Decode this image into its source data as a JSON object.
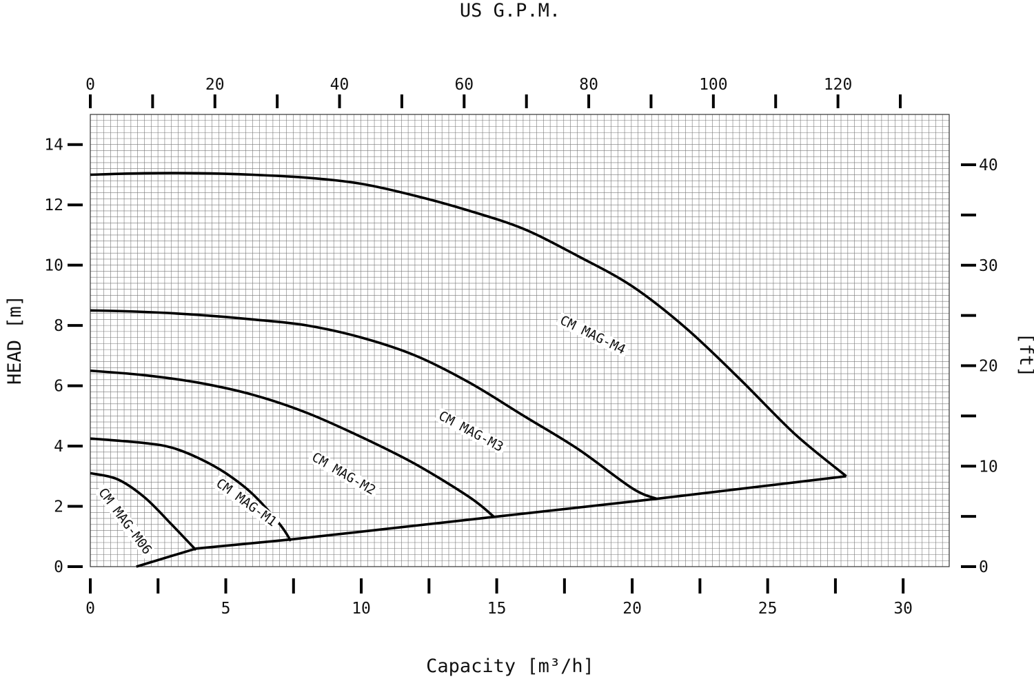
{
  "chart_data": {
    "type": "line",
    "title": "",
    "top_axis": {
      "label": "US G.P.M.",
      "ticks": [
        0,
        20,
        40,
        60,
        80,
        100,
        120
      ],
      "range": [
        0,
        130
      ]
    },
    "xlabel": "Capacity   [m³/h]",
    "xlim": [
      0,
      31.7
    ],
    "x_ticks": [
      0,
      5,
      10,
      15,
      20,
      25,
      30
    ],
    "ylabel": "HEAD [m]",
    "ylim": [
      0,
      15
    ],
    "y_ticks": [
      0,
      2,
      4,
      6,
      8,
      10,
      12,
      14
    ],
    "right_axis": {
      "label": "[ft]",
      "ticks": [
        0,
        10,
        20,
        30,
        40
      ],
      "range": [
        0,
        49.2
      ]
    },
    "grid": true,
    "series": [
      {
        "name": "CM MAG-M06",
        "x": [
          0,
          1,
          2,
          3,
          3.9
        ],
        "y": [
          3.1,
          2.9,
          2.3,
          1.4,
          0.55
        ]
      },
      {
        "name": "CM MAG-M1",
        "x": [
          0,
          2,
          3,
          4,
          5,
          6,
          7,
          7.4
        ],
        "y": [
          4.25,
          4.1,
          3.95,
          3.6,
          3.1,
          2.4,
          1.4,
          0.85
        ]
      },
      {
        "name": "CM MAG-M2",
        "x": [
          0,
          2,
          4,
          6,
          8,
          10,
          12,
          14,
          14.9
        ],
        "y": [
          6.5,
          6.35,
          6.1,
          5.7,
          5.1,
          4.3,
          3.4,
          2.3,
          1.65
        ]
      },
      {
        "name": "CM MAG-M3",
        "x": [
          0,
          2,
          4,
          6,
          8,
          10,
          12,
          14,
          16,
          18,
          20,
          20.9
        ],
        "y": [
          8.5,
          8.45,
          8.35,
          8.2,
          8.0,
          7.6,
          7.0,
          6.1,
          5.0,
          3.9,
          2.6,
          2.25
        ]
      },
      {
        "name": "CM MAG-M4",
        "x": [
          0,
          2,
          4,
          6,
          8,
          10,
          12,
          14,
          16,
          18,
          20,
          22,
          24,
          26,
          27.9
        ],
        "y": [
          13.0,
          13.05,
          13.05,
          13.0,
          12.9,
          12.7,
          12.3,
          11.8,
          11.2,
          10.3,
          9.3,
          7.9,
          6.2,
          4.4,
          3.0
        ]
      },
      {
        "name": "",
        "x": [
          1.7,
          3.9,
          7.4,
          14.9,
          20.9,
          27.9
        ],
        "y": [
          0,
          0.6,
          0.9,
          1.65,
          2.25,
          3.0
        ]
      }
    ]
  }
}
